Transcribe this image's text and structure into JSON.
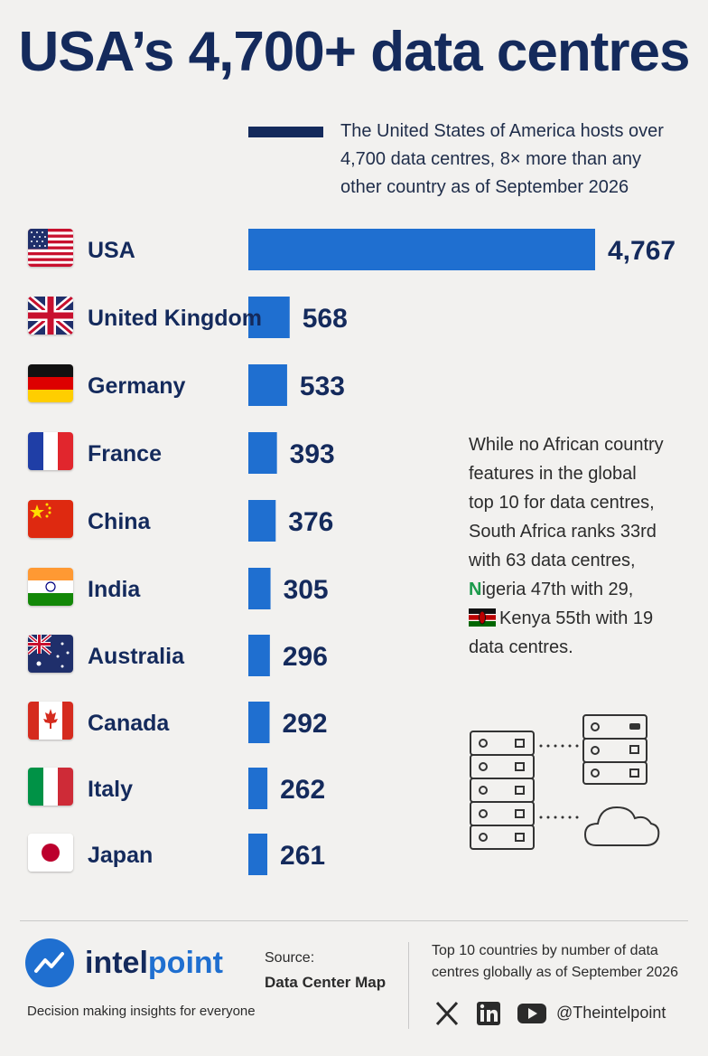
{
  "header": {
    "title": "USA’s 4,700+ data centres",
    "intro_lines": [
      "The United States of America hosts over",
      "4,700 data centres, 8× more than any",
      "other country as of September 2026"
    ]
  },
  "chart_data": {
    "type": "bar",
    "orientation": "horizontal",
    "categories": [
      "USA",
      "United Kingdom",
      "Germany",
      "France",
      "China",
      "India",
      "Australia",
      "Canada",
      "Italy",
      "Japan"
    ],
    "values": [
      4767,
      568,
      533,
      393,
      376,
      305,
      296,
      292,
      262,
      261
    ],
    "value_labels": [
      "4,767",
      "568",
      "533",
      "393",
      "376",
      "305",
      "296",
      "292",
      "262",
      "261"
    ],
    "flag_icons": [
      "flag-usa-icon",
      "flag-uk-icon",
      "flag-germany-icon",
      "flag-france-icon",
      "flag-china-icon",
      "flag-india-icon",
      "flag-australia-icon",
      "flag-canada-icon",
      "flag-italy-icon",
      "flag-japan-icon"
    ],
    "bar_color": "#1f6fd0",
    "accent_color": "#142a5c",
    "grid": false
  },
  "side_note": {
    "line1": "While no African country",
    "line2": "features in the global",
    "line3": "top 10 for data centres,",
    "line4": "South Africa ranks 33rd",
    "line5": "with 63 data centres,",
    "ng_letter": "N",
    "ng_text": "igeria 47th with 29,",
    "kenya_text": "Kenya 55th with 19",
    "line8": "data centres."
  },
  "footer": {
    "brand_part1": "intel",
    "brand_part2": "point",
    "tagline": "Decision making insights for everyone",
    "source_label": "Source:",
    "source_value": "Data Center Map",
    "caption": "Top 10 countries by number of data centres globally as of September 2026",
    "handle": "@Theintelpoint",
    "social_icons": [
      "x-icon",
      "linkedin-icon",
      "youtube-icon"
    ]
  }
}
